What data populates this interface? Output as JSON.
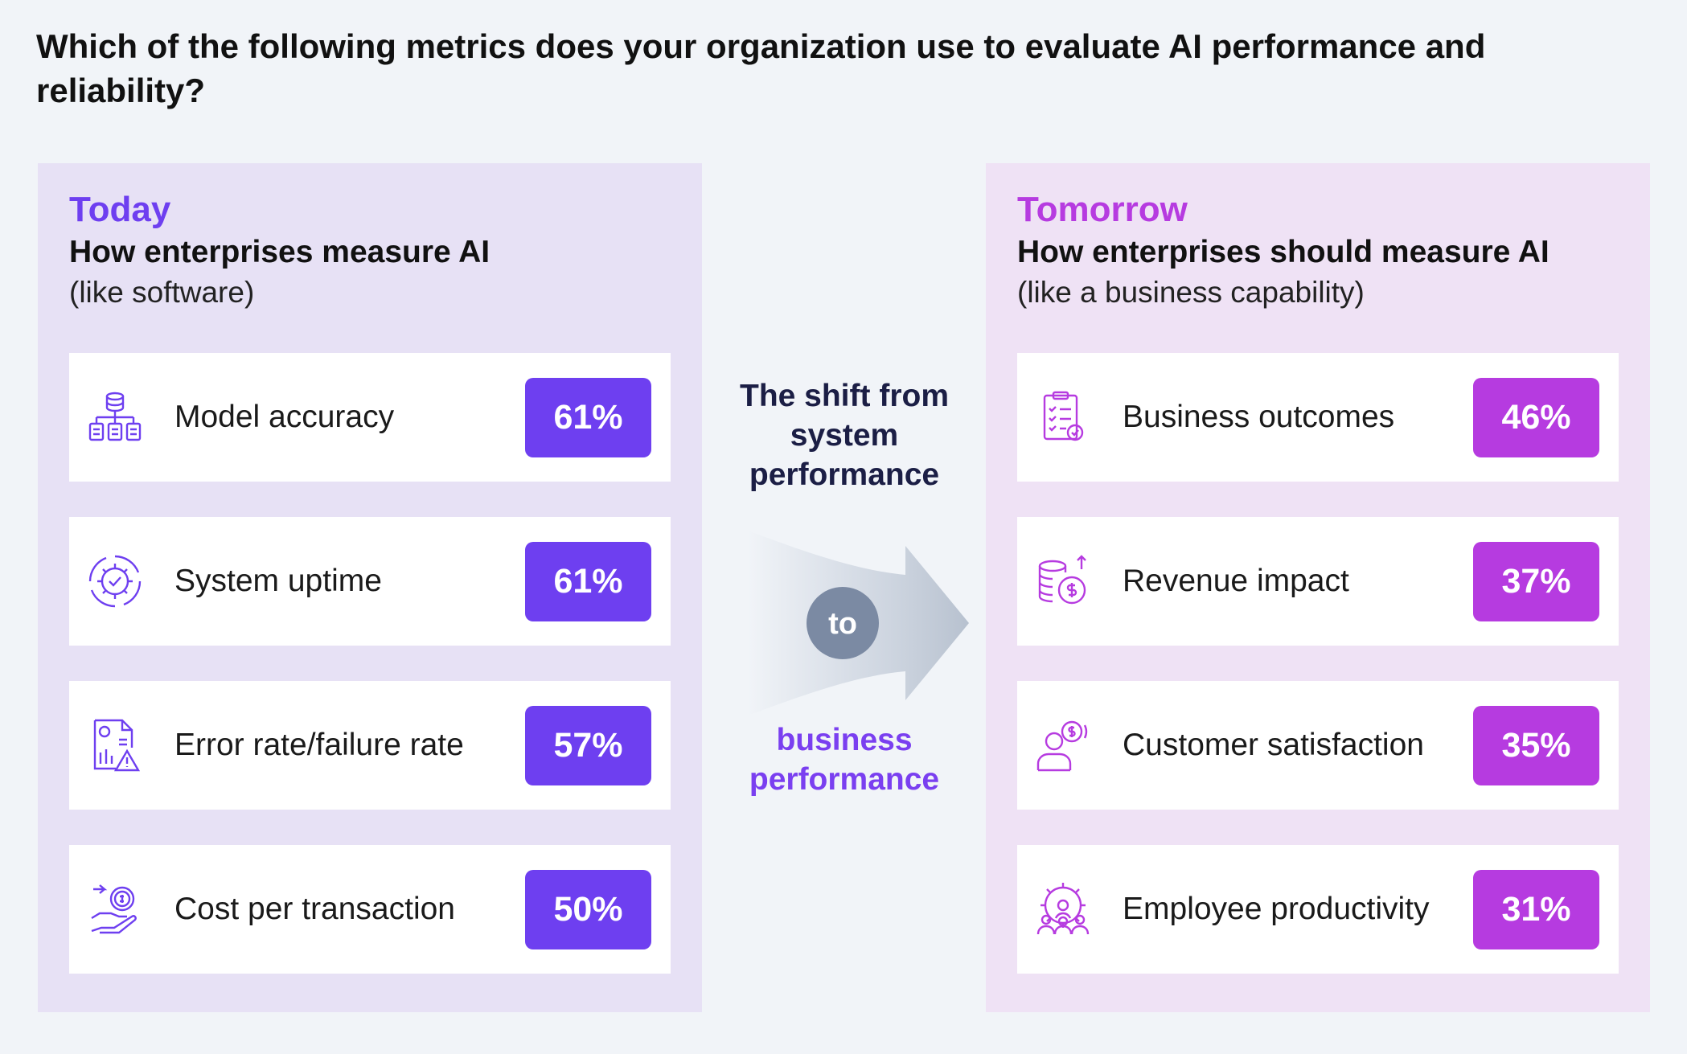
{
  "title": "Which of the following metrics does your organization use to evaluate AI performance and reliability?",
  "colors": {
    "today_accent": "#6e3ff0",
    "tomorrow_accent": "#b63be0",
    "connector": "#7b8aa3"
  },
  "today": {
    "kicker": "Today",
    "subhead": "How enterprises measure AI",
    "note": "(like software)",
    "items": [
      {
        "icon": "database-hierarchy-icon",
        "label": "Model accuracy",
        "value": "61%"
      },
      {
        "icon": "gear-cycle-check-icon",
        "label": "System uptime",
        "value": "61%"
      },
      {
        "icon": "report-warning-icon",
        "label": "Error rate/failure rate",
        "value": "57%"
      },
      {
        "icon": "hand-coins-icon",
        "label": "Cost per transaction",
        "value": "50%"
      }
    ]
  },
  "shift": {
    "from": "The shift from system performance",
    "connector": "to",
    "to": "business performance"
  },
  "tomorrow": {
    "kicker": "Tomorrow",
    "subhead": "How enterprises should measure AI",
    "note": "(like a business capability)",
    "items": [
      {
        "icon": "clipboard-checklist-icon",
        "label": "Business outcomes",
        "value": "46%"
      },
      {
        "icon": "coins-growth-icon",
        "label": "Revenue impact",
        "value": "37%"
      },
      {
        "icon": "customer-money-icon",
        "label": "Customer satisfaction",
        "value": "35%"
      },
      {
        "icon": "team-gear-icon",
        "label": "Employee productivity",
        "value": "31%"
      }
    ]
  }
}
